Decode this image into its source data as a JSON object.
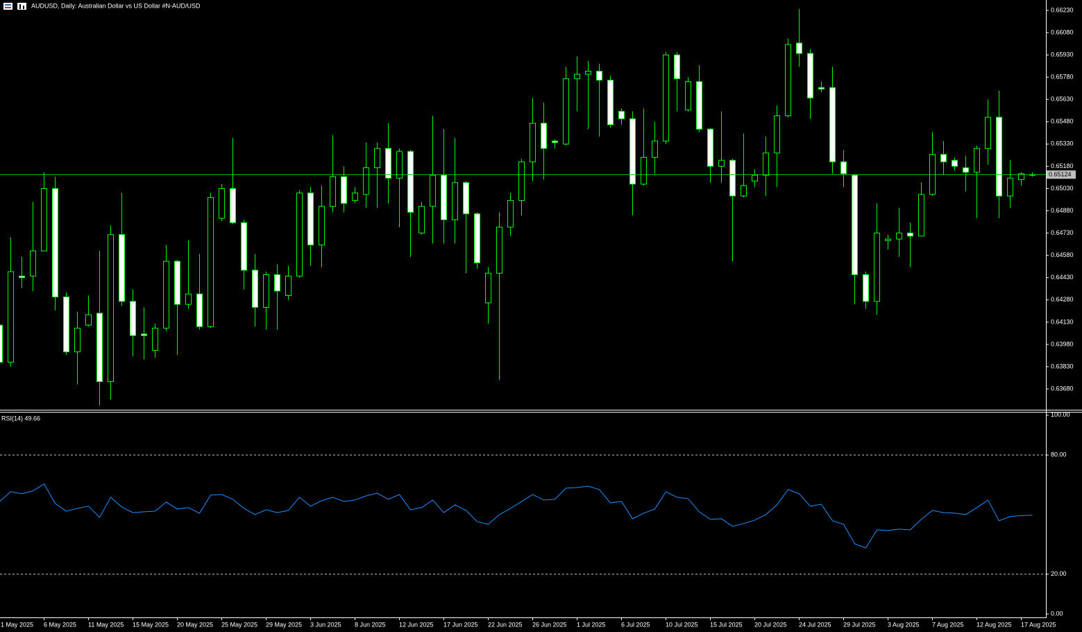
{
  "chart_data": [
    {
      "type": "candlestick",
      "title": "AUDUSD, Daily:  Australian Dollar vs US Dollar #N-AUD/USD",
      "categories": [
        "1 May 2025",
        null,
        null,
        null,
        "6 May 2025",
        null,
        null,
        null,
        "11 May 2025",
        null,
        null,
        null,
        "15 May 2025",
        null,
        null,
        null,
        "20 May 2025",
        null,
        null,
        null,
        "25 May 2025",
        null,
        null,
        null,
        "29 May 2025",
        null,
        null,
        null,
        "3 Jun 2025",
        null,
        null,
        null,
        "8 Jun 2025",
        null,
        null,
        null,
        "12 Jun 2025",
        null,
        null,
        null,
        "17 Jun 2025",
        null,
        null,
        null,
        "22 Jun 2025",
        null,
        null,
        null,
        "26 Jun 2025",
        null,
        null,
        null,
        "1 Jul 2025",
        null,
        null,
        null,
        "6 Jul 2025",
        null,
        null,
        null,
        "10 Jul 2025",
        null,
        null,
        null,
        "15 Jul 2025",
        null,
        null,
        null,
        "20 Jul 2025",
        null,
        null,
        null,
        "24 Jul 2025",
        null,
        null,
        null,
        "29 Jul 2025",
        null,
        null,
        null,
        "3 Aug 2025",
        null,
        null,
        null,
        "7 Aug 2025",
        null,
        null,
        null,
        "12 Aug 2025",
        null,
        null,
        null,
        "17 Aug 2025",
        null
      ],
      "open": [
        0.6411,
        0.6386,
        0.6444,
        0.6444,
        0.6461,
        0.6503,
        0.643,
        0.6393,
        0.6411,
        0.6419,
        0.6373,
        0.6472,
        0.6427,
        0.6405,
        0.6394,
        0.6409,
        0.6454,
        0.6425,
        0.6432,
        0.641,
        0.6483,
        0.6503,
        0.648,
        0.6448,
        0.6423,
        0.6445,
        0.6431,
        0.6444,
        0.65,
        0.6465,
        0.6491,
        0.6511,
        0.6495,
        0.6499,
        0.6517,
        0.653,
        0.651,
        0.6528,
        0.6473,
        0.6491,
        0.6512,
        0.6482,
        0.6507,
        0.6486,
        0.6426,
        0.6446,
        0.6477,
        0.6495,
        0.6521,
        0.6547,
        0.6535,
        0.6533,
        0.6577,
        0.658,
        0.6582,
        0.6576,
        0.6555,
        0.655,
        0.6506,
        0.6524,
        0.6535,
        0.6593,
        0.6556,
        0.6575,
        0.6543,
        0.6518,
        0.6522,
        0.6498,
        0.6508,
        0.6512,
        0.6527,
        0.6552,
        0.6601,
        0.6594,
        0.6571,
        0.6571,
        0.6521,
        0.6512,
        0.6445,
        0.6427,
        0.6468,
        0.6469,
        0.6473,
        0.6471,
        0.6499,
        0.6526,
        0.6522,
        0.6517,
        0.6514,
        0.653,
        0.6551,
        0.6498,
        0.6509,
        0.6512
      ],
      "high": [
        0.6417,
        0.647,
        0.6457,
        0.6494,
        0.6514,
        0.6511,
        0.6433,
        0.642,
        0.6431,
        0.6461,
        0.6478,
        0.65,
        0.6435,
        0.6423,
        0.6412,
        0.6465,
        0.6455,
        0.6468,
        0.6459,
        0.65,
        0.6506,
        0.6537,
        0.6482,
        0.6459,
        0.6447,
        0.6452,
        0.6451,
        0.6502,
        0.6504,
        0.6505,
        0.6539,
        0.6518,
        0.6504,
        0.6534,
        0.6534,
        0.6547,
        0.653,
        0.6529,
        0.6494,
        0.6552,
        0.6543,
        0.6537,
        0.6508,
        0.6487,
        0.645,
        0.6487,
        0.65,
        0.6523,
        0.6564,
        0.6561,
        0.6536,
        0.6585,
        0.6592,
        0.6589,
        0.6587,
        0.6579,
        0.6557,
        0.6555,
        0.6557,
        0.6548,
        0.6595,
        0.6595,
        0.6578,
        0.6586,
        0.6544,
        0.6555,
        0.6523,
        0.654,
        0.6516,
        0.6538,
        0.6559,
        0.6604,
        0.6624,
        0.6597,
        0.6575,
        0.6585,
        0.6529,
        0.6513,
        0.6447,
        0.6493,
        0.6472,
        0.649,
        0.648,
        0.6507,
        0.6541,
        0.6535,
        0.6524,
        0.6525,
        0.6532,
        0.6563,
        0.6569,
        0.6522,
        0.6514,
        0.6514
      ],
      "low": [
        0.6383,
        0.6383,
        0.6436,
        0.6434,
        0.6461,
        0.6421,
        0.6391,
        0.6371,
        0.641,
        0.6357,
        0.6361,
        0.6424,
        0.639,
        0.6388,
        0.6389,
        0.6407,
        0.6391,
        0.6422,
        0.6408,
        0.6409,
        0.6481,
        0.6479,
        0.6435,
        0.641,
        0.6408,
        0.6408,
        0.6428,
        0.6443,
        0.6451,
        0.645,
        0.6487,
        0.6487,
        0.6493,
        0.649,
        0.649,
        0.6493,
        0.6477,
        0.6457,
        0.6472,
        0.6466,
        0.6466,
        0.6466,
        0.6446,
        0.6449,
        0.6412,
        0.6374,
        0.6471,
        0.6485,
        0.6508,
        0.6509,
        0.653,
        0.6532,
        0.6555,
        0.6543,
        0.6538,
        0.6544,
        0.6546,
        0.6485,
        0.6505,
        0.6513,
        0.6533,
        0.6555,
        0.6555,
        0.6541,
        0.6507,
        0.6507,
        0.6454,
        0.6497,
        0.6504,
        0.6498,
        0.6504,
        0.6551,
        0.6585,
        0.655,
        0.6568,
        0.6513,
        0.6504,
        0.6425,
        0.6422,
        0.6418,
        0.6462,
        0.6457,
        0.645,
        0.6471,
        0.6498,
        0.6512,
        0.6515,
        0.6501,
        0.6483,
        0.6519,
        0.6483,
        0.649,
        0.6505,
        0.6511
      ],
      "close": [
        0.6386,
        0.6447,
        0.6443,
        0.6461,
        0.6503,
        0.643,
        0.6393,
        0.6409,
        0.6418,
        0.6373,
        0.6472,
        0.6427,
        0.6404,
        0.6404,
        0.6409,
        0.6454,
        0.6425,
        0.6432,
        0.641,
        0.6497,
        0.6503,
        0.648,
        0.6448,
        0.6423,
        0.6445,
        0.6434,
        0.6444,
        0.65,
        0.6465,
        0.6491,
        0.6511,
        0.6493,
        0.65,
        0.6517,
        0.653,
        0.651,
        0.6528,
        0.6487,
        0.6491,
        0.6512,
        0.6482,
        0.6507,
        0.6486,
        0.6453,
        0.6446,
        0.6477,
        0.6495,
        0.6521,
        0.6547,
        0.653,
        0.6534,
        0.6577,
        0.658,
        0.6582,
        0.6576,
        0.6546,
        0.655,
        0.6506,
        0.6524,
        0.6535,
        0.6593,
        0.6577,
        0.6575,
        0.6543,
        0.6518,
        0.6522,
        0.6498,
        0.6505,
        0.6512,
        0.6527,
        0.6552,
        0.66,
        0.6594,
        0.6564,
        0.657,
        0.6521,
        0.6513,
        0.6445,
        0.6427,
        0.6473,
        0.6469,
        0.6473,
        0.6471,
        0.6499,
        0.6526,
        0.6521,
        0.6518,
        0.6514,
        0.653,
        0.6551,
        0.6498,
        0.651,
        0.6513,
        0.65124
      ],
      "last_price": 0.65124,
      "ylim": [
        0.6354,
        0.663
      ],
      "yticks": [
        {
          "value": 0.6623,
          "label": "0.66230"
        },
        {
          "value": 0.6608,
          "label": "0.66080"
        },
        {
          "value": 0.6593,
          "label": "0.65930"
        },
        {
          "value": 0.6578,
          "label": "0.65780"
        },
        {
          "value": 0.6563,
          "label": "0.65630"
        },
        {
          "value": 0.6548,
          "label": "0.65480"
        },
        {
          "value": 0.6533,
          "label": "0.65330"
        },
        {
          "value": 0.6518,
          "label": "0.65180"
        },
        {
          "value": 0.6503,
          "label": "0.65030"
        },
        {
          "value": 0.6488,
          "label": "0.64880"
        },
        {
          "value": 0.6473,
          "label": "0.64730"
        },
        {
          "value": 0.6458,
          "label": "0.64580"
        },
        {
          "value": 0.6443,
          "label": "0.64430"
        },
        {
          "value": 0.6428,
          "label": "0.64280"
        },
        {
          "value": 0.6413,
          "label": "0.64130"
        },
        {
          "value": 0.6398,
          "label": "0.63980"
        },
        {
          "value": 0.6383,
          "label": "0.63830"
        },
        {
          "value": 0.6368,
          "label": "0.63680"
        }
      ],
      "up_color": "#000000",
      "down_color": "#ffffff",
      "wick_color": "#00ff00",
      "price_line_color": "#00c000"
    },
    {
      "type": "line",
      "title": "RSI(14) 49.66",
      "values": [
        56.6,
        61.5,
        60.5,
        61.9,
        65.4,
        55.6,
        51.7,
        53.1,
        54.2,
        48.6,
        58.7,
        53.8,
        51.0,
        51.4,
        51.7,
        56.3,
        52.8,
        53.5,
        50.7,
        59.8,
        60.1,
        57.7,
        53.1,
        50.0,
        52.4,
        51.0,
        52.1,
        58.7,
        54.2,
        57.0,
        58.7,
        56.6,
        57.3,
        59.4,
        60.8,
        57.7,
        60.1,
        52.4,
        53.5,
        57.3,
        51.0,
        54.9,
        52.1,
        46.5,
        45.1,
        50.0,
        53.1,
        56.6,
        60.1,
        57.3,
        57.7,
        63.3,
        63.6,
        64.3,
        62.6,
        55.9,
        56.6,
        47.9,
        50.7,
        52.8,
        61.5,
        58.7,
        58.0,
        51.4,
        47.6,
        47.9,
        44.1,
        45.5,
        47.2,
        50.0,
        54.9,
        62.6,
        60.5,
        54.2,
        55.2,
        46.9,
        45.1,
        35.3,
        33.2,
        42.3,
        42.0,
        42.7,
        42.3,
        47.6,
        52.1,
        51.0,
        50.7,
        50.0,
        53.5,
        57.3,
        46.9,
        49.0,
        49.5,
        49.66
      ],
      "color": "#1e90ff",
      "ylim": [
        -2.1,
        101.7
      ],
      "yticks": [
        {
          "value": 100,
          "label": "100.00"
        },
        {
          "value": 80,
          "label": "80.00"
        },
        {
          "value": 20,
          "label": "20.00"
        },
        {
          "value": 0,
          "label": "0.00"
        }
      ],
      "levels": [
        80,
        20
      ],
      "level_color": "#c8c8c8"
    }
  ]
}
